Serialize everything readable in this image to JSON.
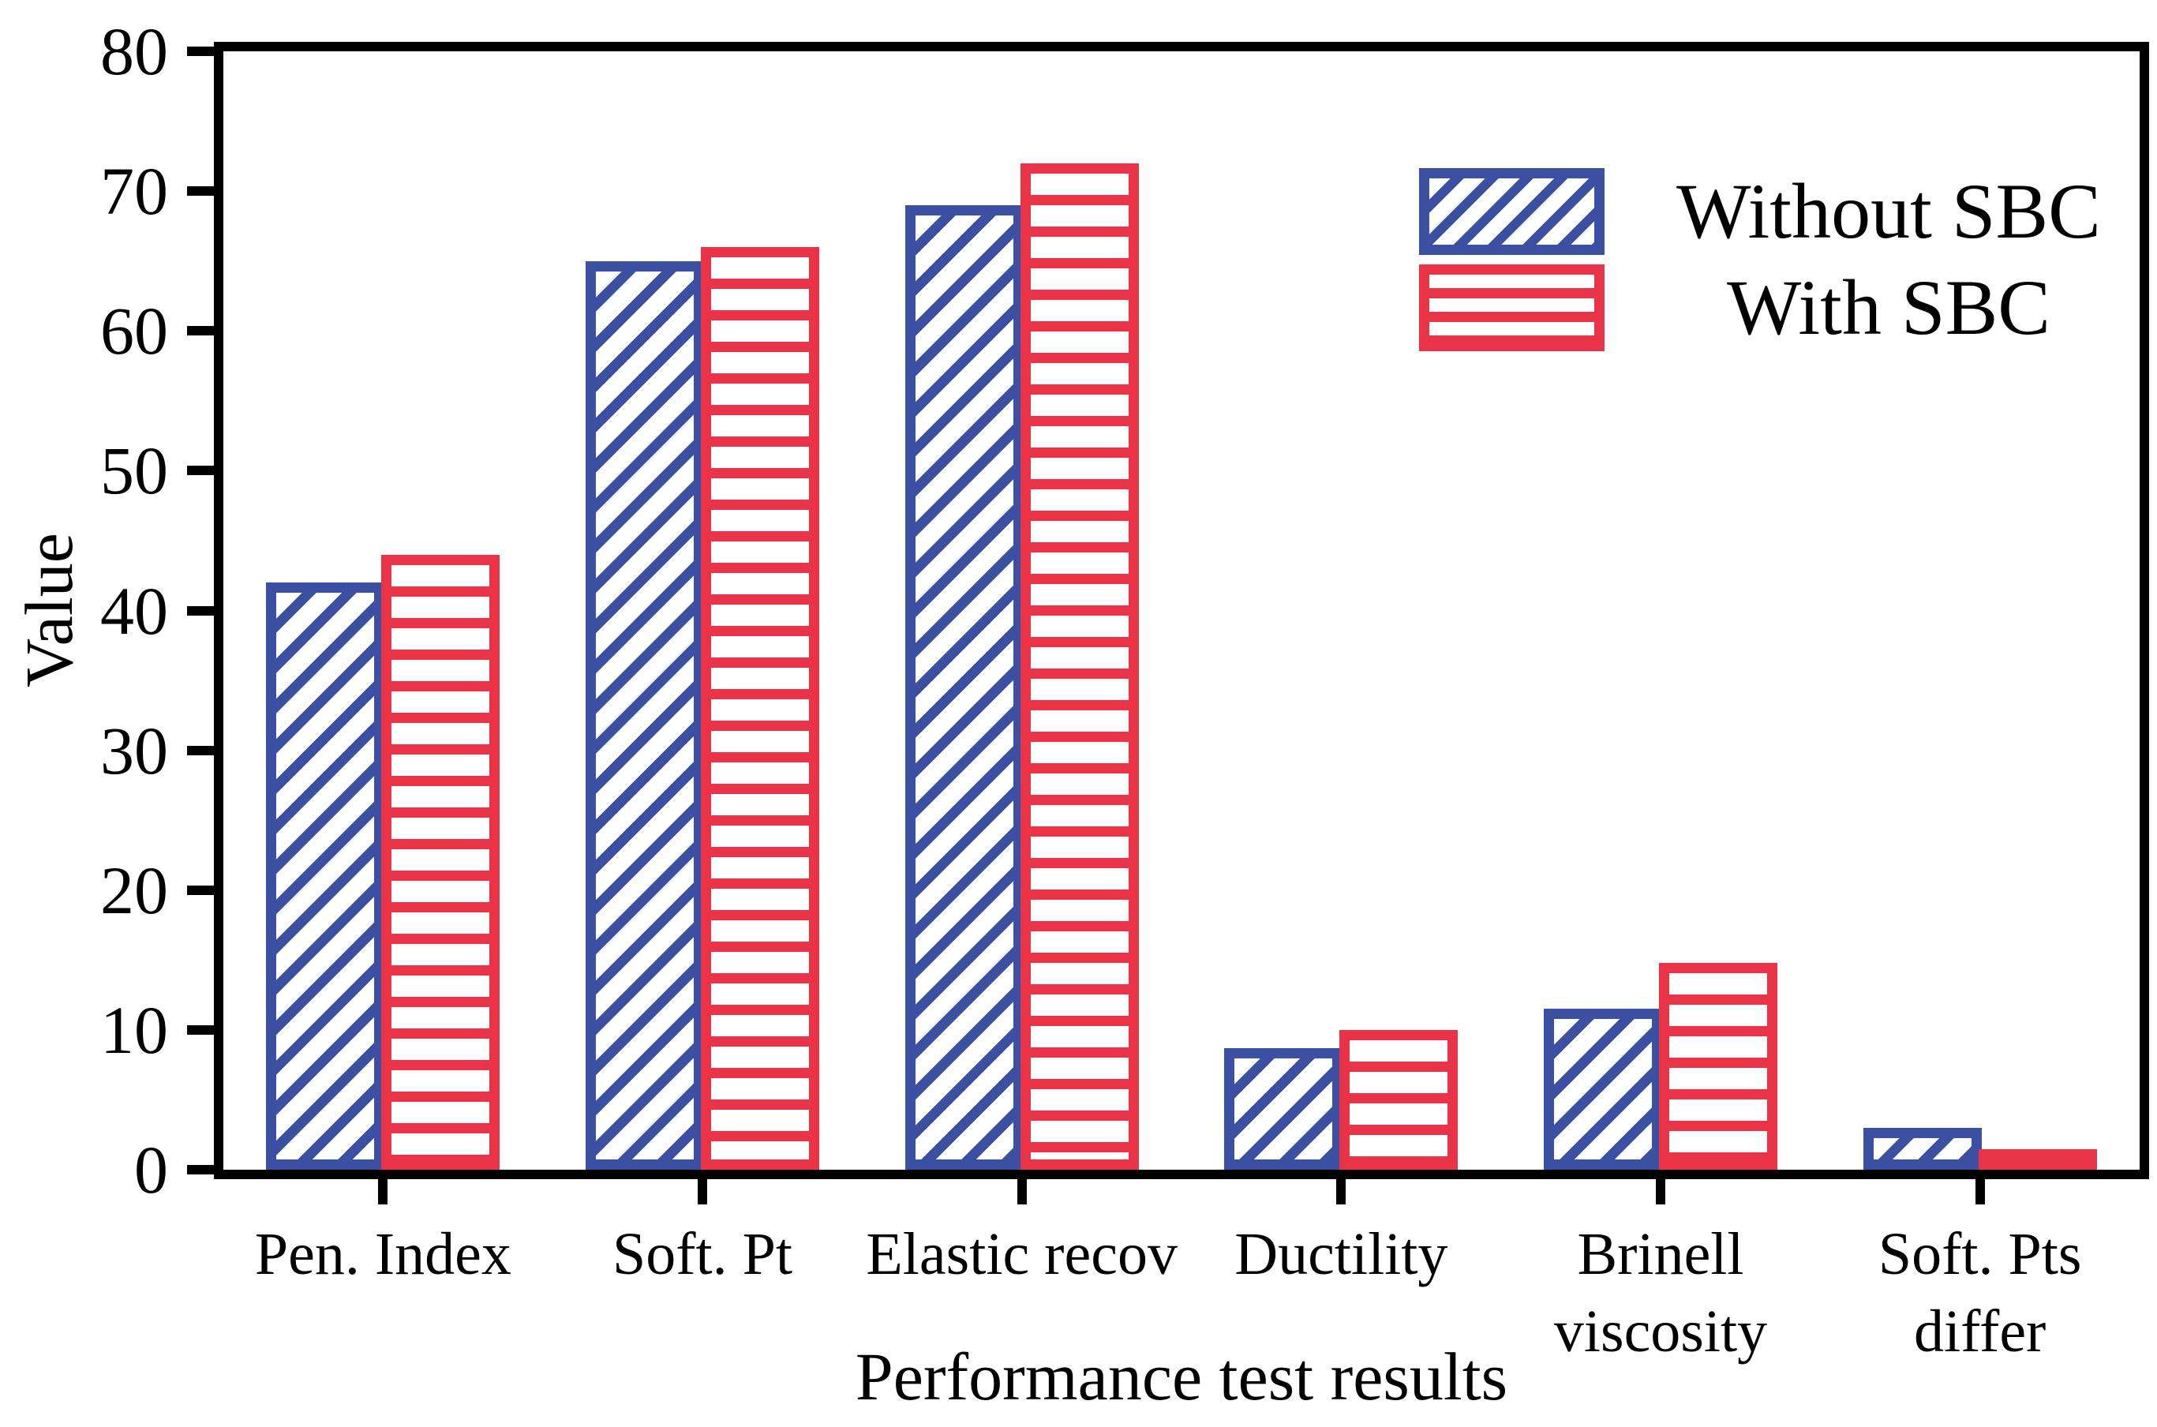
{
  "figure": {
    "background": "#ffffff",
    "axis_color": "#000000"
  },
  "chart_data": {
    "type": "bar",
    "title": "",
    "xlabel": "Performance test results",
    "ylabel": "Value",
    "ylim": [
      0,
      80
    ],
    "yticks": [
      0,
      10,
      20,
      30,
      40,
      50,
      60,
      70,
      80
    ],
    "grid": false,
    "legend_position": "upper right",
    "categories": [
      "Pen. Index",
      "Soft. Pt",
      "Elastic recov",
      "Ductility",
      "Brinell\nviscosity",
      "Soft. Pts\ndiffer"
    ],
    "series": [
      {
        "name": "Without SBC",
        "color": "#3B50A3",
        "hatch": "diagonal",
        "values": [
          42,
          65,
          69,
          8.7,
          11.5,
          3
        ]
      },
      {
        "name": "With SBC",
        "color": "#EA3347",
        "hatch": "horizontal",
        "values": [
          44,
          66,
          72,
          10,
          14.8,
          0.6
        ]
      }
    ]
  }
}
